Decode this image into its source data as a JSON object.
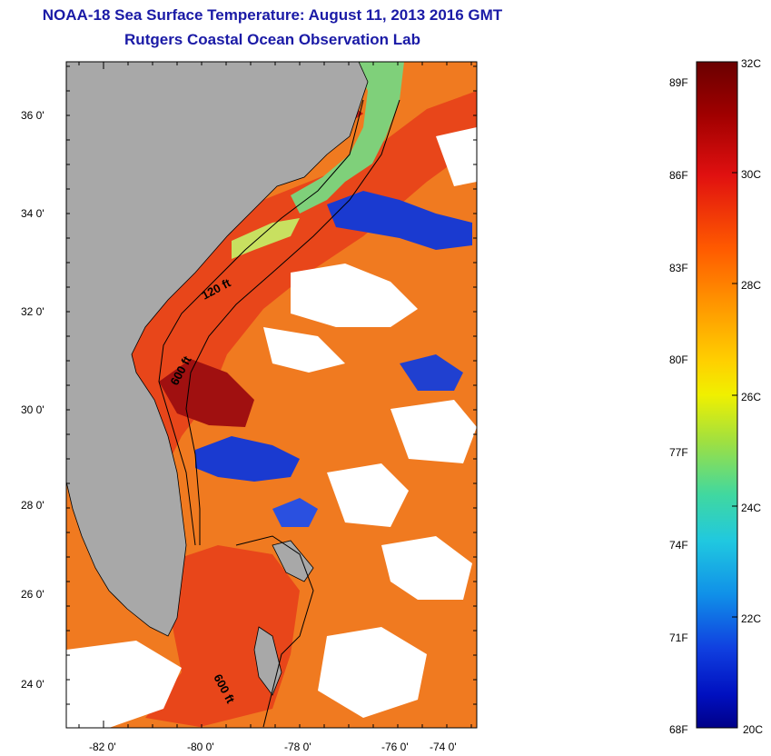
{
  "header": {
    "title_line1": "NOAA-18 Sea Surface Temperature:  August 11, 2013 2016 GMT",
    "title_line2": "Rutgers Coastal Ocean Observation Lab"
  },
  "map": {
    "lon_ticks": [
      "-82 0'",
      "-80 0'",
      "-78 0'",
      "-76 0'",
      "-74 0'"
    ],
    "lat_ticks": [
      "36 0'",
      "34 0'",
      "32 0'",
      "30 0'",
      "28 0'",
      "26 0'",
      "24 0'"
    ],
    "contour_labels": [
      "120 ft",
      "600 ft",
      "600 ft"
    ]
  },
  "colorbar": {
    "celsius_labels": [
      "32C",
      "30C",
      "28C",
      "26C",
      "24C",
      "22C",
      "20C"
    ],
    "fahrenheit_labels": [
      "89F",
      "86F",
      "83F",
      "80F",
      "77F",
      "74F",
      "71F",
      "68F"
    ]
  },
  "colors": {
    "title": "#1a1aa6",
    "land": "#a8a8a8",
    "warm": "#e83a10",
    "hot": "#8a1010",
    "cool": "#1030c8"
  }
}
